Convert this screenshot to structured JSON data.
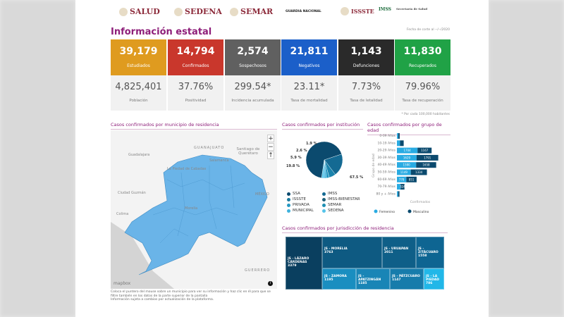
{
  "header": {
    "logos": [
      "SALUD",
      "SEDENA",
      "SEMAR",
      "GUARDIA NACIONAL",
      "ISSSTE",
      "IMSS",
      "Secretaría de Salud"
    ],
    "title": "Información estatal",
    "cutoff_date": "Fecha de corte al --/--/2020"
  },
  "cards": [
    {
      "value": "39,179",
      "label": "Estudiados",
      "color": "#df9b1f",
      "sub_value": "4,825,401",
      "sub_label": "Población"
    },
    {
      "value": "14,794",
      "label": "Confirmados",
      "color": "#c9372c",
      "sub_value": "37.76%",
      "sub_label": "Positividad"
    },
    {
      "value": "2,574",
      "label": "Sospechosos",
      "color": "#606060",
      "sub_value": "299.54*",
      "sub_label": "Incidencia acumulada"
    },
    {
      "value": "21,811",
      "label": "Negativos",
      "color": "#1b5fc9",
      "sub_value": "23.11*",
      "sub_label": "Tasa de mortalidad"
    },
    {
      "value": "1,143",
      "label": "Defunciones",
      "color": "#2a2a2a",
      "sub_value": "7.73%",
      "sub_label": "Tasa de letalidad"
    },
    {
      "value": "11,830",
      "label": "Recuperados",
      "color": "#20a246",
      "sub_value": "79.96%",
      "sub_label": "Tasa de recuperación"
    }
  ],
  "footnote": "* Por cada 100,000 habitantes",
  "map": {
    "title": "Casos confirmados por municipio de residencia",
    "labels": [
      "Guadalajara",
      "GUANAJUATO",
      "Santiago de Querétaro",
      "Salamanca",
      "La Piedad de Cabadas",
      "Ciudad Guzmán",
      "Colima",
      "Morelia",
      "MÉXICO",
      "GUERRERO"
    ],
    "zoom_in": "+",
    "zoom_out": "−",
    "reset": "↑",
    "attribution": "mapbox",
    "info": "i",
    "fill": "#6ab4e8",
    "notes": [
      "Coloca el puntero del mouse sobre un municipio para ver su información y haz clic en él para que se filtre también en los datos de la parte superior de la pantalla",
      "Información sujeta a cambios por actualización de la plataforma."
    ]
  },
  "chart_data": [
    {
      "type": "pie",
      "title": "Casos confirmados por institución",
      "slices": [
        {
          "name": "SSA",
          "value": 67.5,
          "label": "67.5 %",
          "color": "#0b4a6e"
        },
        {
          "name": "IMSS",
          "value": 19.8,
          "label": "19.8 %",
          "color": "#146a93"
        },
        {
          "name": "ISSSTE",
          "value": 5.9,
          "label": "5.9 %",
          "color": "#1a84ad"
        },
        {
          "name": "PRIVADA",
          "value": 2.6,
          "label": "2.6 %",
          "color": "#2698c2"
        },
        {
          "name": "MUNICIPAL",
          "value": 1.9,
          "label": "1.9 %",
          "color": "#3fb2dd"
        },
        {
          "name": "Otros",
          "value": 2.3,
          "label": "",
          "color": "#56c4ea"
        }
      ],
      "legend": [
        {
          "name": "SSA",
          "color": "#0b4a6e"
        },
        {
          "name": "IMSS",
          "color": "#146a93"
        },
        {
          "name": "ISSSTE",
          "color": "#1a7a9e"
        },
        {
          "name": "IMSS-BIENESTAR",
          "color": "#1d5f78"
        },
        {
          "name": "PRIVADA",
          "color": "#2698c2"
        },
        {
          "name": "SEMAR",
          "color": "#1e8fb3"
        },
        {
          "name": "MUNICIPAL",
          "color": "#3fb2dd"
        },
        {
          "name": "SEDENA",
          "color": "#56c4ea"
        }
      ]
    },
    {
      "type": "bar",
      "orientation": "horizontal",
      "stacked": true,
      "title": "Casos confirmados por grupo de edad",
      "ylabel": "Grupo de edad",
      "xlabel": "Confirmados",
      "categories": [
        "0-09 Años",
        "10-19 Años",
        "20-29 Años",
        "30-39 Años",
        "40-49 Años",
        "50-59 Años",
        "60-69 Años",
        "70-79 Años",
        "80 y + Años"
      ],
      "series": [
        {
          "name": "Femenino",
          "color": "#29abe2",
          "values": [
            110,
            260,
            1704,
            1629,
            1590,
            1149,
            778,
            300,
            100
          ],
          "labels": [
            "",
            "",
            "1704",
            "1629",
            "1590",
            "1149",
            "778",
            "",
            ""
          ]
        },
        {
          "name": "Masculino",
          "color": "#0b4a6e",
          "values": [
            120,
            300,
            1167,
            1791,
            1658,
            1334,
            851,
            324,
            110
          ],
          "labels": [
            "",
            "",
            "1167",
            "1791",
            "1658",
            "1334",
            "851",
            "324",
            ""
          ]
        }
      ]
    },
    {
      "type": "treemap",
      "title": "Casos confirmados por jurisdicción de residencia",
      "items": [
        {
          "name": "JS - LÁZARO CÁRDENAS",
          "value": "3379"
        },
        {
          "name": "JS - MORELIA",
          "value": "3763"
        },
        {
          "name": "JS - URUAPAN",
          "value": "2011"
        },
        {
          "name": "JS - ZITÁCUARO",
          "value": "1558"
        },
        {
          "name": "JS - ZAMORA",
          "value": "1195"
        },
        {
          "name": "JS - APATZINGÁN",
          "value": "1185"
        },
        {
          "name": "JS - PÁTZCUARO",
          "value": "1147"
        },
        {
          "name": "JS - LA PIEDAD",
          "value": "786"
        }
      ]
    }
  ]
}
